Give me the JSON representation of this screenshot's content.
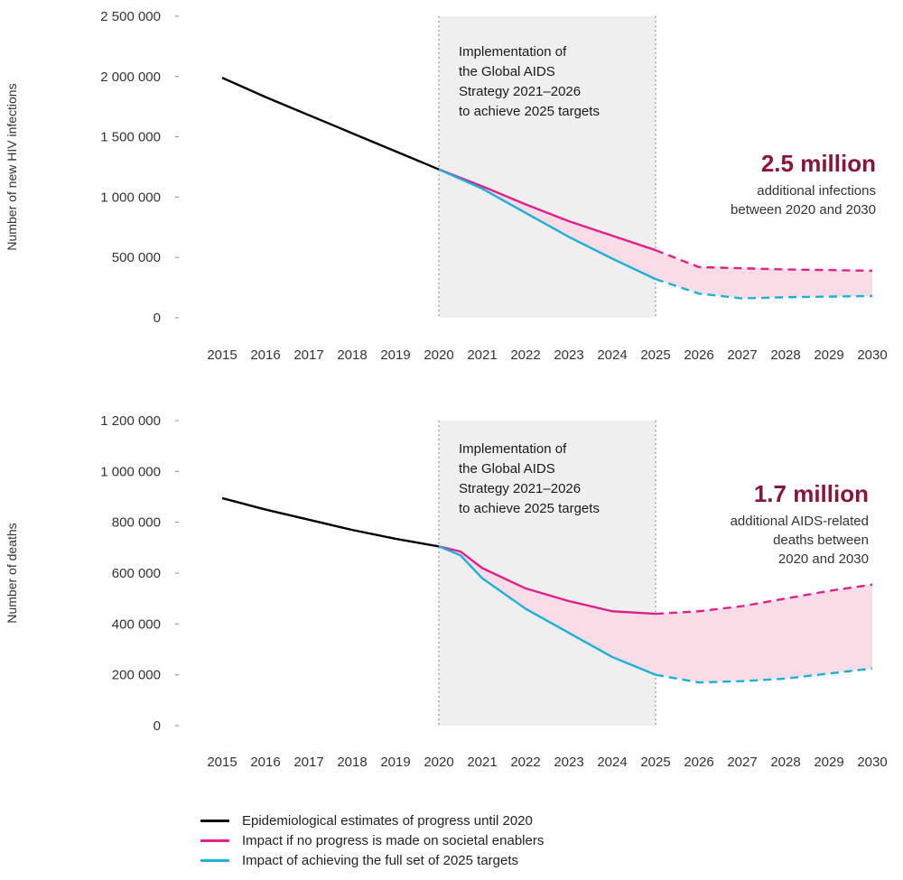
{
  "colors": {
    "historic": "#000000",
    "no_progress": "#e0218a",
    "full_targets": "#1ab1d8",
    "gap_fill": "#f9dce6",
    "band_fill": "#efefef",
    "highlight": "#8a1538"
  },
  "legend": {
    "items": [
      {
        "label": "Epidemiological estimates of progress until 2020"
      },
      {
        "label": "Impact if no progress is made on societal enablers"
      },
      {
        "label": "Impact of achieving the full set of 2025 targets"
      }
    ]
  },
  "chart_data": [
    {
      "type": "line",
      "ylabel": "Number of new HIV infections",
      "xlim": [
        2015,
        2030
      ],
      "ylim": [
        0,
        2500000
      ],
      "x_ticks": [
        "2015",
        "2016",
        "2017",
        "2018",
        "2019",
        "2020",
        "2021",
        "2022",
        "2023",
        "2024",
        "2025",
        "2026",
        "2027",
        "2028",
        "2029",
        "2030"
      ],
      "y_ticks": [
        "0",
        "500 000",
        "1 000 000",
        "1 500 000",
        "2 000 000",
        "2 500 000"
      ],
      "y_tick_values": [
        0,
        500000,
        1000000,
        1500000,
        2000000,
        2500000
      ],
      "band": {
        "x_range": [
          2020,
          2025
        ],
        "text": [
          "Implementation of",
          "the Global AIDS",
          "Strategy 2021–2026",
          "to achieve 2025 targets"
        ]
      },
      "annotation": {
        "headline": "2.5 million",
        "lines": [
          "additional infections",
          "between 2020 and 2030"
        ]
      },
      "series": [
        {
          "key": "historic",
          "x": [
            2015,
            2016,
            2017,
            2018,
            2019,
            2020
          ],
          "y": [
            1990000,
            1830000,
            1680000,
            1530000,
            1380000,
            1230000
          ]
        },
        {
          "key": "no_progress",
          "x": [
            2020,
            2021,
            2022,
            2023,
            2024,
            2025,
            2026,
            2027,
            2028,
            2029,
            2030
          ],
          "y": [
            1230000,
            1090000,
            940000,
            800000,
            680000,
            560000,
            420000,
            410000,
            400000,
            395000,
            390000
          ],
          "dashed_from": 2025
        },
        {
          "key": "full_targets",
          "x": [
            2020,
            2021,
            2022,
            2023,
            2024,
            2025,
            2026,
            2027,
            2028,
            2029,
            2030
          ],
          "y": [
            1230000,
            1070000,
            870000,
            670000,
            490000,
            320000,
            200000,
            160000,
            170000,
            175000,
            180000
          ],
          "dashed_from": 2025
        }
      ]
    },
    {
      "type": "line",
      "ylabel": "Number of deaths",
      "xlim": [
        2015,
        2030
      ],
      "ylim": [
        0,
        1200000
      ],
      "x_ticks": [
        "2015",
        "2016",
        "2017",
        "2018",
        "2019",
        "2020",
        "2021",
        "2022",
        "2023",
        "2024",
        "2025",
        "2026",
        "2027",
        "2028",
        "2029",
        "2030"
      ],
      "y_ticks": [
        "0",
        "200 000",
        "400 000",
        "600 000",
        "800 000",
        "1 000 000",
        "1 200 000"
      ],
      "y_tick_values": [
        0,
        200000,
        400000,
        600000,
        800000,
        1000000,
        1200000
      ],
      "band": {
        "x_range": [
          2020,
          2025
        ],
        "text": [
          "Implementation of",
          "the Global AIDS",
          "Strategy 2021–2026",
          "to achieve 2025 targets"
        ]
      },
      "annotation": {
        "headline": "1.7 million",
        "lines": [
          "additional AIDS-related",
          "deaths between",
          "2020 and 2030"
        ]
      },
      "series": [
        {
          "key": "historic",
          "x": [
            2015,
            2016,
            2017,
            2018,
            2019,
            2020
          ],
          "y": [
            895000,
            850000,
            810000,
            770000,
            735000,
            705000
          ]
        },
        {
          "key": "no_progress",
          "x": [
            2020,
            2020.5,
            2021,
            2022,
            2023,
            2024,
            2025,
            2026,
            2027,
            2028,
            2029,
            2030
          ],
          "y": [
            705000,
            685000,
            620000,
            540000,
            490000,
            450000,
            440000,
            450000,
            470000,
            500000,
            530000,
            555000
          ],
          "dashed_from": 2025
        },
        {
          "key": "full_targets",
          "x": [
            2020,
            2020.5,
            2021,
            2022,
            2023,
            2024,
            2025,
            2026,
            2027,
            2028,
            2029,
            2030
          ],
          "y": [
            705000,
            670000,
            580000,
            460000,
            365000,
            270000,
            200000,
            170000,
            175000,
            185000,
            205000,
            225000
          ],
          "dashed_from": 2025
        }
      ]
    }
  ]
}
